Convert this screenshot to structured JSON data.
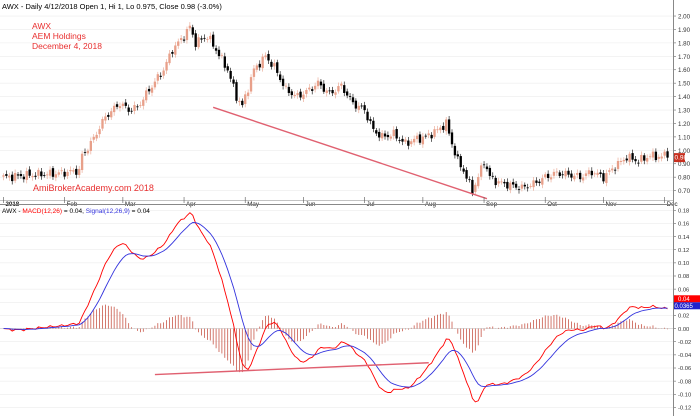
{
  "header": {
    "price_info": "AWX - Daily 4/12/2018 Open 1, Hi 1, Lo 0.975, Close 0.98 (-3.0%)"
  },
  "annotations": {
    "ticker": "AWX",
    "company": "AEM Holdings",
    "date": "December 4, 2018",
    "watermark": "AmiBrokerAcademy.com 2018"
  },
  "macd_header": {
    "ticker": "AWX - ",
    "macd_label": "MACD(12,26)",
    "macd_value": " = 0.04, ",
    "signal_label": "Signal(12,26,9)",
    "signal_value": " = 0.04"
  },
  "colors": {
    "up": "#e8a08a",
    "down": "#000000",
    "trendline": "#e06070",
    "macd": "#ff0000",
    "signal": "#3333dd",
    "histogram": "#c04030",
    "title_red": "#e83030",
    "last_price_tag": "#c83020",
    "macd_tag": "#ff0000",
    "signal_tag": "#2222cc"
  },
  "chart_data": [
    {
      "type": "candlestick",
      "title": "AWX - Daily 4/12/2018 Open 1, Hi 1, Lo 0.975, Close 0.98 (-3.0%)",
      "x_tick_labels": [
        "2018",
        "Feb",
        "Mar",
        "Apr",
        "May",
        "Jun",
        "Jul",
        "Aug",
        "Sep",
        "Oct",
        "Nov",
        "Dec"
      ],
      "y_tick_labels": [
        "0.70",
        "0.80",
        "0.90",
        "1.00",
        "1.10",
        "1.20",
        "1.30",
        "1.40",
        "1.50",
        "1.60",
        "1.70",
        "1.80",
        "1.90",
        "2.00"
      ],
      "ylim": [
        0.63,
        2.03
      ],
      "last_price_label": "0.98",
      "close_keyframes": [
        [
          0,
          0.8
        ],
        [
          12,
          0.82
        ],
        [
          20,
          0.83
        ],
        [
          26,
          0.85
        ],
        [
          27,
          0.96
        ],
        [
          30,
          1.05
        ],
        [
          35,
          1.25
        ],
        [
          40,
          1.35
        ],
        [
          43,
          1.3
        ],
        [
          46,
          1.32
        ],
        [
          50,
          1.45
        ],
        [
          55,
          1.6
        ],
        [
          58,
          1.75
        ],
        [
          62,
          1.85
        ],
        [
          64,
          1.92
        ],
        [
          66,
          1.8
        ],
        [
          70,
          1.85
        ],
        [
          73,
          1.75
        ],
        [
          77,
          1.6
        ],
        [
          80,
          1.4
        ],
        [
          82,
          1.33
        ],
        [
          86,
          1.6
        ],
        [
          90,
          1.7
        ],
        [
          93,
          1.62
        ],
        [
          97,
          1.45
        ],
        [
          101,
          1.4
        ],
        [
          105,
          1.45
        ],
        [
          108,
          1.5
        ],
        [
          112,
          1.42
        ],
        [
          116,
          1.48
        ],
        [
          120,
          1.35
        ],
        [
          124,
          1.3
        ],
        [
          127,
          1.15
        ],
        [
          130,
          1.1
        ],
        [
          134,
          1.12
        ],
        [
          138,
          1.05
        ],
        [
          141,
          1.08
        ],
        [
          145,
          1.1
        ],
        [
          149,
          1.15
        ],
        [
          152,
          1.2
        ],
        [
          154,
          1.05
        ],
        [
          156,
          0.92
        ],
        [
          158,
          0.85
        ],
        [
          161,
          0.7
        ],
        [
          163,
          0.8
        ],
        [
          165,
          0.92
        ],
        [
          167,
          0.8
        ],
        [
          170,
          0.76
        ],
        [
          174,
          0.74
        ],
        [
          178,
          0.72
        ],
        [
          182,
          0.75
        ],
        [
          186,
          0.8
        ],
        [
          190,
          0.83
        ],
        [
          194,
          0.82
        ],
        [
          198,
          0.8
        ],
        [
          202,
          0.84
        ],
        [
          206,
          0.8
        ],
        [
          210,
          0.88
        ],
        [
          214,
          0.95
        ],
        [
          218,
          0.92
        ],
        [
          222,
          0.96
        ],
        [
          226,
          0.95
        ],
        [
          228,
          0.98
        ]
      ],
      "trendline": {
        "from": {
          "bar": 72,
          "value": 1.32
        },
        "to": {
          "bar": 166,
          "value": 0.64
        }
      }
    },
    {
      "type": "line",
      "title": "AWX - MACD(12,26) = 0.04, Signal(12,26,9) = 0.04",
      "series": [
        {
          "name": "MACD(12,26)",
          "color": "#ff0000"
        },
        {
          "name": "Signal(12,26,9)",
          "color": "#3333dd"
        }
      ],
      "y_tick_labels": [
        "-0.12",
        "-0.10",
        "-0.08",
        "-0.06",
        "-0.04",
        "-0.02",
        "0.00",
        "0.02",
        "0.04",
        "0.06",
        "0.08",
        "0.10",
        "0.12",
        "0.14",
        "0.16",
        "0.18"
      ],
      "ylim": [
        -0.13,
        0.185
      ],
      "last_value_labels": [
        "0.04",
        "0.0365"
      ],
      "trendline": {
        "from": {
          "bar": 52,
          "value": -0.07
        },
        "to": {
          "bar": 146,
          "value": -0.052
        }
      }
    }
  ]
}
